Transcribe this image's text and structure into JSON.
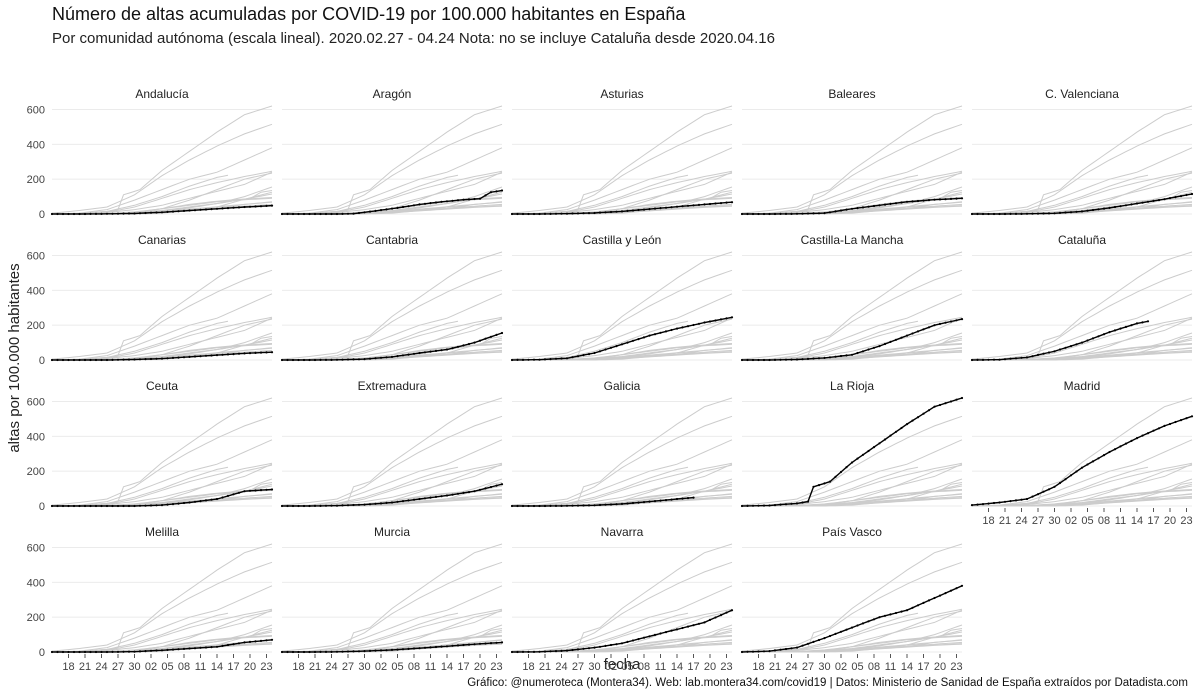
{
  "chart_data": {
    "type": "line",
    "title": "Número de altas acumuladas por COVID-19 por 100.000 habitantes en España",
    "subtitle": "Por comunidad autónoma (escala lineal). 2020.02.27 - 04.24 Nota: no se incluye Cataluña desde 2020.04.16",
    "xlabel": "fecha",
    "ylabel": "altas por 100.000 habitantes",
    "caption": "Gráfico: @numeroteca (Montera34). Web: lab.montera34.com/covid19 | Datos: Ministerio de Sanidad de España extraídos por Datadista.com",
    "x_tick_labels": [
      "18",
      "21",
      "24",
      "27",
      "30",
      "02",
      "05",
      "08",
      "11",
      "14",
      "17",
      "20",
      "23"
    ],
    "x_tick_dates": [
      "2020-03-18",
      "2020-03-21",
      "2020-03-24",
      "2020-03-27",
      "2020-03-30",
      "2020-04-02",
      "2020-04-05",
      "2020-04-08",
      "2020-04-11",
      "2020-04-14",
      "2020-04-17",
      "2020-04-20",
      "2020-04-23"
    ],
    "xlim": [
      "2020-03-15",
      "2020-04-24"
    ],
    "y_ticks": [
      0,
      200,
      400,
      600
    ],
    "ylim": [
      0,
      620
    ],
    "facet_layout": "5 columns x 4 rows",
    "highlight_color": "#000000",
    "background_color": "#cccccc",
    "grid": true,
    "series": [
      {
        "name": "Andalucía",
        "x": [
          "2020-03-15",
          "2020-03-20",
          "2020-03-25",
          "2020-03-30",
          "2020-04-04",
          "2020-04-09",
          "2020-04-14",
          "2020-04-19",
          "2020-04-24"
        ],
        "y": [
          0,
          0,
          1,
          3,
          10,
          20,
          30,
          40,
          48
        ]
      },
      {
        "name": "Aragón",
        "x": [
          "2020-03-15",
          "2020-03-25",
          "2020-03-28",
          "2020-04-01",
          "2020-04-05",
          "2020-04-09",
          "2020-04-13",
          "2020-04-17",
          "2020-04-20",
          "2020-04-22",
          "2020-04-24"
        ],
        "y": [
          0,
          0,
          2,
          18,
          35,
          55,
          70,
          82,
          88,
          125,
          135
        ]
      },
      {
        "name": "Asturias",
        "x": [
          "2020-03-15",
          "2020-03-20",
          "2020-03-25",
          "2020-03-30",
          "2020-04-04",
          "2020-04-09",
          "2020-04-14",
          "2020-04-19",
          "2020-04-24"
        ],
        "y": [
          0,
          0,
          2,
          6,
          15,
          28,
          42,
          55,
          68
        ]
      },
      {
        "name": "Baleares",
        "x": [
          "2020-03-15",
          "2020-03-20",
          "2020-03-25",
          "2020-03-30",
          "2020-04-04",
          "2020-04-09",
          "2020-04-14",
          "2020-04-19",
          "2020-04-24"
        ],
        "y": [
          0,
          0,
          1,
          5,
          30,
          50,
          70,
          82,
          90
        ]
      },
      {
        "name": "C. Valenciana",
        "x": [
          "2020-03-15",
          "2020-03-20",
          "2020-03-25",
          "2020-03-30",
          "2020-04-04",
          "2020-04-09",
          "2020-04-14",
          "2020-04-19",
          "2020-04-24"
        ],
        "y": [
          0,
          0,
          1,
          4,
          15,
          35,
          60,
          85,
          115
        ]
      },
      {
        "name": "Canarias",
        "x": [
          "2020-03-15",
          "2020-03-20",
          "2020-03-25",
          "2020-03-30",
          "2020-04-04",
          "2020-04-09",
          "2020-04-14",
          "2020-04-19",
          "2020-04-24"
        ],
        "y": [
          0,
          0,
          0,
          3,
          8,
          18,
          28,
          38,
          45
        ]
      },
      {
        "name": "Cantabria",
        "x": [
          "2020-03-15",
          "2020-03-20",
          "2020-03-25",
          "2020-03-30",
          "2020-04-04",
          "2020-04-09",
          "2020-04-14",
          "2020-04-19",
          "2020-04-24"
        ],
        "y": [
          0,
          0,
          1,
          5,
          18,
          40,
          60,
          100,
          155
        ]
      },
      {
        "name": "Castilla y León",
        "x": [
          "2020-03-15",
          "2020-03-20",
          "2020-03-25",
          "2020-03-30",
          "2020-04-04",
          "2020-04-09",
          "2020-04-14",
          "2020-04-19",
          "2020-04-24"
        ],
        "y": [
          0,
          2,
          10,
          40,
          90,
          140,
          180,
          215,
          245
        ]
      },
      {
        "name": "Castilla-La Mancha",
        "x": [
          "2020-03-15",
          "2020-03-20",
          "2020-03-25",
          "2020-03-30",
          "2020-04-04",
          "2020-04-09",
          "2020-04-14",
          "2020-04-19",
          "2020-04-24"
        ],
        "y": [
          0,
          0,
          3,
          12,
          30,
          80,
          140,
          200,
          235
        ]
      },
      {
        "name": "Cataluña",
        "x": [
          "2020-03-15",
          "2020-03-20",
          "2020-03-25",
          "2020-03-30",
          "2020-04-04",
          "2020-04-09",
          "2020-04-14",
          "2020-04-16"
        ],
        "y": [
          0,
          2,
          15,
          50,
          100,
          160,
          210,
          222
        ]
      },
      {
        "name": "Ceuta",
        "x": [
          "2020-03-15",
          "2020-03-20",
          "2020-03-25",
          "2020-03-30",
          "2020-04-04",
          "2020-04-09",
          "2020-04-14",
          "2020-04-19",
          "2020-04-24"
        ],
        "y": [
          0,
          0,
          0,
          0,
          5,
          20,
          40,
          85,
          95
        ]
      },
      {
        "name": "Extremadura",
        "x": [
          "2020-03-15",
          "2020-03-20",
          "2020-03-25",
          "2020-03-30",
          "2020-04-04",
          "2020-04-09",
          "2020-04-14",
          "2020-04-19",
          "2020-04-24"
        ],
        "y": [
          0,
          0,
          2,
          8,
          20,
          40,
          60,
          85,
          125
        ]
      },
      {
        "name": "Galicia",
        "x": [
          "2020-03-15",
          "2020-03-20",
          "2020-03-25",
          "2020-03-30",
          "2020-04-04",
          "2020-04-09",
          "2020-04-14",
          "2020-04-17"
        ],
        "y": [
          0,
          0,
          1,
          4,
          12,
          25,
          40,
          48
        ]
      },
      {
        "name": "La Rioja",
        "x": [
          "2020-03-15",
          "2020-03-20",
          "2020-03-25",
          "2020-03-27",
          "2020-03-28",
          "2020-03-31",
          "2020-04-04",
          "2020-04-09",
          "2020-04-14",
          "2020-04-19",
          "2020-04-24"
        ],
        "y": [
          0,
          3,
          15,
          25,
          110,
          140,
          250,
          360,
          470,
          570,
          620
        ]
      },
      {
        "name": "Madrid",
        "x": [
          "2020-03-15",
          "2020-03-20",
          "2020-03-25",
          "2020-03-30",
          "2020-04-04",
          "2020-04-09",
          "2020-04-14",
          "2020-04-19",
          "2020-04-24"
        ],
        "y": [
          5,
          20,
          40,
          110,
          220,
          310,
          390,
          460,
          515
        ]
      },
      {
        "name": "Melilla",
        "x": [
          "2020-03-15",
          "2020-03-20",
          "2020-03-25",
          "2020-03-30",
          "2020-04-04",
          "2020-04-09",
          "2020-04-14",
          "2020-04-19",
          "2020-04-24"
        ],
        "y": [
          0,
          0,
          0,
          2,
          10,
          20,
          30,
          55,
          70
        ]
      },
      {
        "name": "Murcia",
        "x": [
          "2020-03-15",
          "2020-03-20",
          "2020-03-25",
          "2020-03-30",
          "2020-04-04",
          "2020-04-09",
          "2020-04-14",
          "2020-04-19",
          "2020-04-24"
        ],
        "y": [
          0,
          0,
          1,
          5,
          12,
          22,
          33,
          45,
          55
        ]
      },
      {
        "name": "Navarra",
        "x": [
          "2020-03-15",
          "2020-03-20",
          "2020-03-25",
          "2020-03-30",
          "2020-04-04",
          "2020-04-09",
          "2020-04-14",
          "2020-04-19",
          "2020-04-24"
        ],
        "y": [
          0,
          1,
          8,
          25,
          50,
          90,
          130,
          170,
          240
        ]
      },
      {
        "name": "País Vasco",
        "x": [
          "2020-03-15",
          "2020-03-20",
          "2020-03-25",
          "2020-03-30",
          "2020-04-04",
          "2020-04-09",
          "2020-04-14",
          "2020-04-19",
          "2020-04-24"
        ],
        "y": [
          0,
          5,
          25,
          80,
          140,
          200,
          240,
          310,
          380
        ]
      }
    ]
  }
}
